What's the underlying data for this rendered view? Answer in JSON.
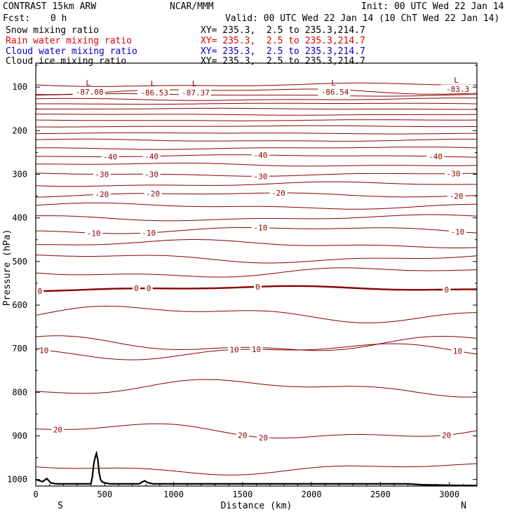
{
  "header": {
    "model": "CONTRAST 15km ARW",
    "org": "NCAR/MMM",
    "init": "Init: 00 UTC Wed 22 Jan 14",
    "fcst_label": "Fcst:",
    "fcst_value": "0 h",
    "valid": "Valid: 00 UTC Wed 22 Jan 14 (10 ChT Wed 22 Jan 14)"
  },
  "legend": [
    {
      "label": "Snow mixing ratio",
      "xy": "XY= 235.3,  2.5 to 235.3,214.7",
      "color": "#000000"
    },
    {
      "label": "Rain water mixing ratio",
      "xy": "XY= 235.3,  2.5 to 235.3,214.7",
      "color": "#e00000"
    },
    {
      "label": "Cloud water mixing ratio",
      "xy": "XY= 235.3,  2.5 to 235.3,214.7",
      "color": "#0000d0"
    },
    {
      "label": "Cloud ice mixing ratio",
      "xy": "XY= 235.3,  2.5 to 235.3,214.7",
      "color": "#000000"
    }
  ],
  "colors": {
    "contour": "#8b0000",
    "terrain": "#000000",
    "axis": "#000000"
  },
  "chart_data": {
    "type": "line",
    "title": "CONTRAST 15km ARW",
    "xlabel": "Distance (km)",
    "ylabel": "Pressure (hPa)",
    "xlim": [
      0,
      3200
    ],
    "ylim": [
      1015,
      45
    ],
    "x_ticks": [
      0,
      500,
      1000,
      1500,
      2000,
      2500,
      3000
    ],
    "x_tick_labels": [
      "0",
      "500",
      "1000",
      "1500",
      "2000",
      "2500",
      "3000"
    ],
    "y_ticks": [
      100,
      200,
      300,
      400,
      500,
      600,
      700,
      800,
      900,
      1000
    ],
    "y_tick_labels": [
      "100",
      "200",
      "300",
      "400",
      "500",
      "600",
      "700",
      "800",
      "900",
      "1000"
    ],
    "end_labels": {
      "left": "S",
      "right": "N"
    },
    "series": [
      {
        "name": "isotherm",
        "base": 95,
        "amp": 3,
        "label_text": "",
        "positions": [],
        "thick": false
      },
      {
        "name": "isotherm",
        "base": 110,
        "amp": 5,
        "label_text": "",
        "positions": [],
        "thick": false
      },
      {
        "name": "isotherm",
        "base": 118,
        "amp": 2,
        "label_text": "",
        "positions": [],
        "thick": false
      },
      {
        "name": "isotherm",
        "base": 128,
        "amp": 2,
        "label_text": "",
        "positions": [],
        "thick": false
      },
      {
        "name": "isotherm",
        "base": 138,
        "amp": 1,
        "label_text": "",
        "positions": [],
        "thick": false
      },
      {
        "name": "isotherm",
        "base": 150,
        "amp": 1,
        "label_text": "",
        "positions": [],
        "thick": false
      },
      {
        "name": "isotherm",
        "base": 163,
        "amp": 1,
        "label_text": "",
        "positions": [],
        "thick": false
      },
      {
        "name": "isotherm",
        "base": 176,
        "amp": 1,
        "label_text": "",
        "positions": [],
        "thick": false
      },
      {
        "name": "isotherm",
        "base": 190,
        "amp": 1,
        "label_text": "",
        "positions": [],
        "thick": false
      },
      {
        "name": "isotherm",
        "base": 206,
        "amp": 1,
        "label_text": "",
        "positions": [],
        "thick": false
      },
      {
        "name": "isotherm",
        "base": 222,
        "amp": 2,
        "label_text": "",
        "positions": [],
        "thick": false
      },
      {
        "name": "isotherm",
        "base": 240,
        "amp": 2,
        "label_text": "",
        "positions": [],
        "thick": false
      },
      {
        "name": "isotherm",
        "base": 258,
        "amp": 2,
        "label_text": "-40",
        "positions": [
          540,
          840,
          1630,
          2900
        ],
        "thick": false
      },
      {
        "name": "isotherm",
        "base": 278,
        "amp": 3,
        "label_text": "",
        "positions": [],
        "thick": false
      },
      {
        "name": "isotherm",
        "base": 300,
        "amp": 3,
        "label_text": "-30",
        "positions": [
          480,
          840,
          1630,
          3030
        ],
        "thick": false
      },
      {
        "name": "isotherm",
        "base": 323,
        "amp": 4,
        "label_text": "",
        "positions": [],
        "thick": false
      },
      {
        "name": "isotherm",
        "base": 347,
        "amp": 4,
        "label_text": "-20",
        "positions": [
          480,
          850,
          1760,
          3050
        ],
        "thick": false
      },
      {
        "name": "isotherm",
        "base": 373,
        "amp": 5,
        "label_text": "",
        "positions": [],
        "thick": false
      },
      {
        "name": "isotherm",
        "base": 400,
        "amp": 5,
        "label_text": "",
        "positions": [],
        "thick": false
      },
      {
        "name": "isotherm",
        "base": 428,
        "amp": 6,
        "label_text": "-10",
        "positions": [
          420,
          820,
          1630,
          3060
        ],
        "thick": false
      },
      {
        "name": "isotherm",
        "base": 460,
        "amp": 7,
        "label_text": "",
        "positions": [],
        "thick": false
      },
      {
        "name": "isotherm",
        "base": 492,
        "amp": 8,
        "label_text": "",
        "positions": [],
        "thick": false
      },
      {
        "name": "isotherm",
        "base": 525,
        "amp": 9,
        "label_text": "",
        "positions": [],
        "thick": false
      },
      {
        "name": "isotherm",
        "base": 562,
        "amp": 4,
        "label_text": "0",
        "positions": [
          30,
          730,
          820,
          1610,
          2980
        ],
        "thick": true
      },
      {
        "name": "isotherm",
        "base": 620,
        "amp": 14,
        "label_text": "",
        "positions": [],
        "thick": false
      },
      {
        "name": "isotherm",
        "base": 690,
        "amp": 14,
        "label_text": "",
        "positions": [],
        "thick": false
      },
      {
        "name": "isotherm",
        "base": 706,
        "amp": 13,
        "label_text": "10",
        "positions": [
          60,
          1440,
          1600,
          3060
        ],
        "thick": false
      },
      {
        "name": "isotherm",
        "base": 790,
        "amp": 14,
        "label_text": "",
        "positions": [],
        "thick": false
      },
      {
        "name": "isotherm",
        "base": 890,
        "amp": 14,
        "label_text": "20",
        "positions": [
          160,
          1500,
          1650,
          2980
        ],
        "thick": false
      },
      {
        "name": "isotherm",
        "base": 975,
        "amp": 10,
        "label_text": "",
        "positions": [],
        "thick": false
      }
    ],
    "minima": [
      {
        "x": 380,
        "p": 100,
        "value": "-87.08"
      },
      {
        "x": 850,
        "p": 101,
        "value": "-86.53"
      },
      {
        "x": 1150,
        "p": 101,
        "value": "-87.37"
      },
      {
        "x": 2160,
        "p": 100,
        "value": "-86.54"
      },
      {
        "x": 3050,
        "p": 93,
        "value": "-83.3"
      }
    ],
    "minima_marker": "L",
    "terrain": {
      "name": "surface",
      "x": [
        0,
        50,
        80,
        110,
        150,
        400,
        410,
        420,
        430,
        440,
        450,
        460,
        470,
        480,
        500,
        540,
        600,
        750,
        770,
        790,
        810,
        850,
        1200,
        1500,
        2000,
        2400,
        2700,
        2800,
        3000,
        3200
      ],
      "p": [
        1000,
        1005,
        998,
        1008,
        1010,
        1010,
        995,
        965,
        950,
        940,
        955,
        985,
        1000,
        1005,
        1008,
        1010,
        1010,
        1010,
        1006,
        1003,
        1007,
        1010,
        1010,
        1010,
        1010,
        1010,
        1010,
        1012,
        1013,
        1014
      ]
    }
  }
}
